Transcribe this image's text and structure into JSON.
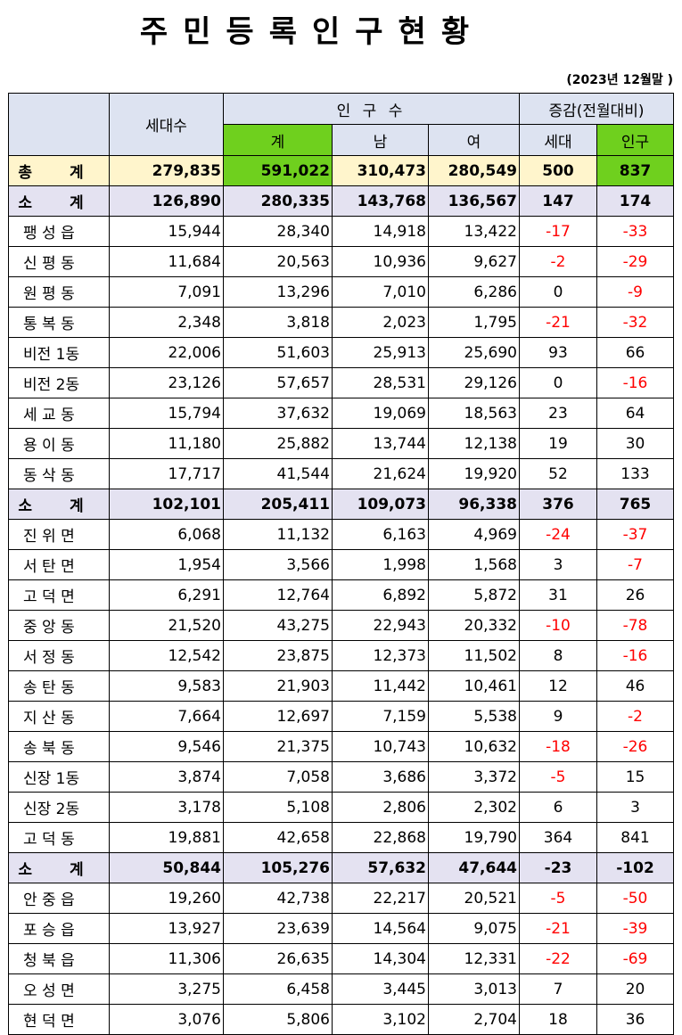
{
  "title": "주민등록인구현황",
  "date_note": "(2023년 12월말 )",
  "header": {
    "households": "세대수",
    "population": "인 구 수",
    "total": "계",
    "male": "남",
    "female": "여",
    "change": "증감(전월대비)",
    "change_households": "세대",
    "change_population": "인구"
  },
  "colors": {
    "green_highlight": "#6fd01e",
    "negative": "#ff0000",
    "header_bg": "#dde3f1",
    "total_bg": "#fff5cc",
    "subtotal_bg": "#e4e2f1"
  },
  "rows": [
    {
      "name": "총 계",
      "type": "total",
      "households": "279,835",
      "total": "591,022",
      "male": "310,473",
      "female": "280,549",
      "chg_h": "500",
      "chg_p": "837"
    },
    {
      "name": "소 계",
      "type": "sub",
      "households": "126,890",
      "total": "280,335",
      "male": "143,768",
      "female": "136,567",
      "chg_h": "147",
      "chg_p": "174"
    },
    {
      "name": "팽 성 읍",
      "type": "row",
      "households": "15,944",
      "total": "28,340",
      "male": "14,918",
      "female": "13,422",
      "chg_h": "-17",
      "chg_p": "-33"
    },
    {
      "name": "신 평 동",
      "type": "row",
      "households": "11,684",
      "total": "20,563",
      "male": "10,936",
      "female": "9,627",
      "chg_h": "-2",
      "chg_p": "-29"
    },
    {
      "name": "원 평 동",
      "type": "row",
      "households": "7,091",
      "total": "13,296",
      "male": "7,010",
      "female": "6,286",
      "chg_h": "0",
      "chg_p": "-9"
    },
    {
      "name": "통 복 동",
      "type": "row",
      "households": "2,348",
      "total": "3,818",
      "male": "2,023",
      "female": "1,795",
      "chg_h": "-21",
      "chg_p": "-32"
    },
    {
      "name": "비전 1동",
      "type": "row",
      "households": "22,006",
      "total": "51,603",
      "male": "25,913",
      "female": "25,690",
      "chg_h": "93",
      "chg_p": "66"
    },
    {
      "name": "비전 2동",
      "type": "row",
      "households": "23,126",
      "total": "57,657",
      "male": "28,531",
      "female": "29,126",
      "chg_h": "0",
      "chg_p": "-16"
    },
    {
      "name": "세 교 동",
      "type": "row",
      "households": "15,794",
      "total": "37,632",
      "male": "19,069",
      "female": "18,563",
      "chg_h": "23",
      "chg_p": "64"
    },
    {
      "name": "용 이 동",
      "type": "row",
      "households": "11,180",
      "total": "25,882",
      "male": "13,744",
      "female": "12,138",
      "chg_h": "19",
      "chg_p": "30"
    },
    {
      "name": "동 삭 동",
      "type": "row",
      "households": "17,717",
      "total": "41,544",
      "male": "21,624",
      "female": "19,920",
      "chg_h": "52",
      "chg_p": "133"
    },
    {
      "name": "소 계",
      "type": "sub",
      "households": "102,101",
      "total": "205,411",
      "male": "109,073",
      "female": "96,338",
      "chg_h": "376",
      "chg_p": "765"
    },
    {
      "name": "진 위 면",
      "type": "row",
      "households": "6,068",
      "total": "11,132",
      "male": "6,163",
      "female": "4,969",
      "chg_h": "-24",
      "chg_p": "-37"
    },
    {
      "name": "서 탄 면",
      "type": "row",
      "households": "1,954",
      "total": "3,566",
      "male": "1,998",
      "female": "1,568",
      "chg_h": "3",
      "chg_p": "-7"
    },
    {
      "name": "고 덕 면",
      "type": "row",
      "households": "6,291",
      "total": "12,764",
      "male": "6,892",
      "female": "5,872",
      "chg_h": "31",
      "chg_p": "26"
    },
    {
      "name": "중 앙 동",
      "type": "row",
      "households": "21,520",
      "total": "43,275",
      "male": "22,943",
      "female": "20,332",
      "chg_h": "-10",
      "chg_p": "-78"
    },
    {
      "name": "서 정 동",
      "type": "row",
      "households": "12,542",
      "total": "23,875",
      "male": "12,373",
      "female": "11,502",
      "chg_h": "8",
      "chg_p": "-16"
    },
    {
      "name": "송 탄 동",
      "type": "row",
      "households": "9,583",
      "total": "21,903",
      "male": "11,442",
      "female": "10,461",
      "chg_h": "12",
      "chg_p": "46"
    },
    {
      "name": "지 산 동",
      "type": "row",
      "households": "7,664",
      "total": "12,697",
      "male": "7,159",
      "female": "5,538",
      "chg_h": "9",
      "chg_p": "-2"
    },
    {
      "name": "송 북 동",
      "type": "row",
      "households": "9,546",
      "total": "21,375",
      "male": "10,743",
      "female": "10,632",
      "chg_h": "-18",
      "chg_p": "-26"
    },
    {
      "name": "신장 1동",
      "type": "row",
      "households": "3,874",
      "total": "7,058",
      "male": "3,686",
      "female": "3,372",
      "chg_h": "-5",
      "chg_p": "15"
    },
    {
      "name": "신장 2동",
      "type": "row",
      "households": "3,178",
      "total": "5,108",
      "male": "2,806",
      "female": "2,302",
      "chg_h": "6",
      "chg_p": "3"
    },
    {
      "name": "고 덕 동",
      "type": "row",
      "households": "19,881",
      "total": "42,658",
      "male": "22,868",
      "female": "19,790",
      "chg_h": "364",
      "chg_p": "841"
    },
    {
      "name": "소 계",
      "type": "sub",
      "households": "50,844",
      "total": "105,276",
      "male": "57,632",
      "female": "47,644",
      "chg_h": "-23",
      "chg_p": "-102"
    },
    {
      "name": "안 중 읍",
      "type": "row",
      "households": "19,260",
      "total": "42,738",
      "male": "22,217",
      "female": "20,521",
      "chg_h": "-5",
      "chg_p": "-50"
    },
    {
      "name": "포 승 읍",
      "type": "row",
      "households": "13,927",
      "total": "23,639",
      "male": "14,564",
      "female": "9,075",
      "chg_h": "-21",
      "chg_p": "-39"
    },
    {
      "name": "청 북 읍",
      "type": "row",
      "households": "11,306",
      "total": "26,635",
      "male": "14,304",
      "female": "12,331",
      "chg_h": "-22",
      "chg_p": "-69"
    },
    {
      "name": "오 성 면",
      "type": "row",
      "households": "3,275",
      "total": "6,458",
      "male": "3,445",
      "female": "3,013",
      "chg_h": "7",
      "chg_p": "20"
    },
    {
      "name": "현 덕 면",
      "type": "row",
      "households": "3,076",
      "total": "5,806",
      "male": "3,102",
      "female": "2,704",
      "chg_h": "18",
      "chg_p": "36"
    }
  ]
}
